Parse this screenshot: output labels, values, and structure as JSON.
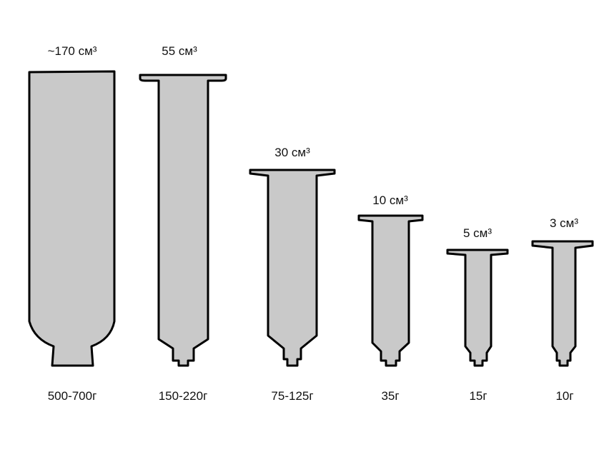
{
  "syringes": [
    {
      "volume": "~170 см³",
      "weight": "500-700г"
    },
    {
      "volume": "55 см³",
      "weight": "150-220г"
    },
    {
      "volume": "30 см³",
      "weight": "75-125г"
    },
    {
      "volume": "10 см³",
      "weight": "35г"
    },
    {
      "volume": "5 см³",
      "weight": "15г"
    },
    {
      "volume": "3 см³",
      "weight": "10г"
    }
  ],
  "colors": {
    "fill": "#c9c9c9",
    "stroke": "#000000"
  }
}
